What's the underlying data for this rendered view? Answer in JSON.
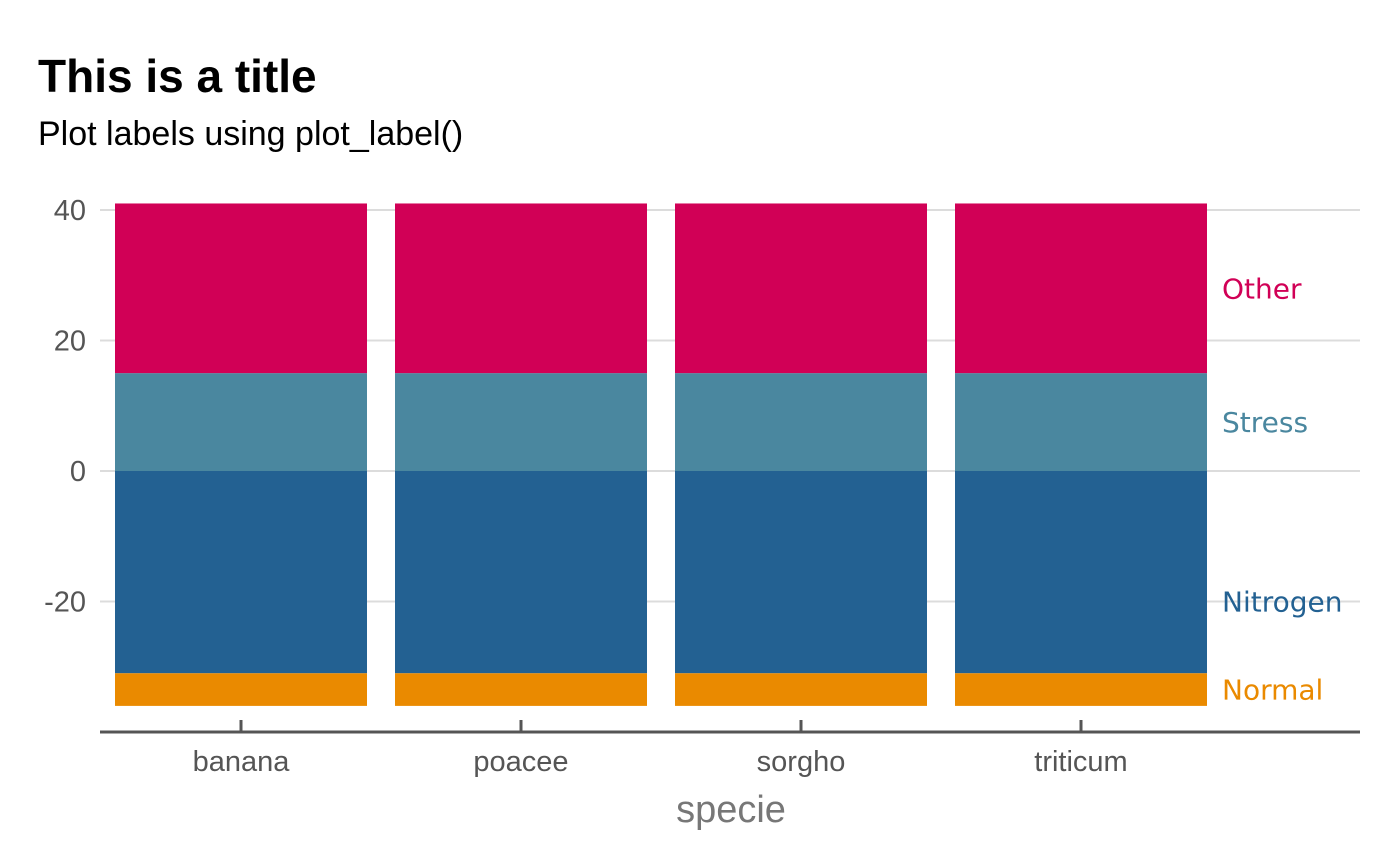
{
  "chart_data": {
    "type": "bar",
    "stacked": true,
    "title": "This is a title",
    "subtitle": "Plot labels using plot_label()",
    "xlabel": "specie",
    "ylabel": "",
    "categories": [
      "banana",
      "poacee",
      "sorgho",
      "triticum"
    ],
    "ylim": [
      -37,
      42
    ],
    "yticks": [
      -20,
      0,
      20,
      40
    ],
    "ytick_labels": [
      "-20",
      "0",
      "20",
      "40"
    ],
    "grid": true,
    "legend": "direct labels at right",
    "series": [
      {
        "name": "Nitrogen",
        "color": "#236192",
        "values": [
          -31,
          -31,
          -31,
          -31
        ]
      },
      {
        "name": "Normal",
        "color": "#EA8A00",
        "values": [
          -5,
          -5,
          -5,
          -5
        ]
      },
      {
        "name": "Stress",
        "color": "#4A879F",
        "values": [
          15,
          15,
          15,
          15
        ]
      },
      {
        "name": "Other",
        "color": "#D10056",
        "values": [
          26,
          26,
          26,
          26
        ]
      }
    ]
  }
}
